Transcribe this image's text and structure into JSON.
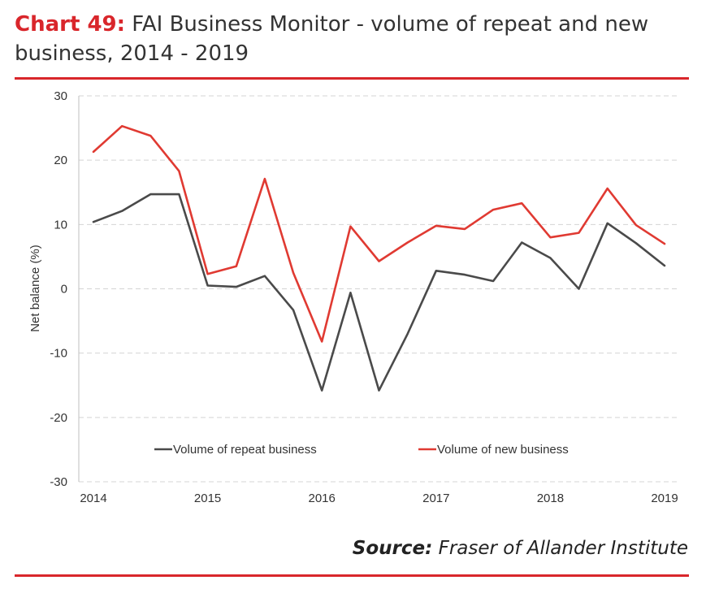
{
  "title": {
    "prefix": "Chart 49:",
    "text": "FAI Business Monitor - volume of repeat and new business, 2014 - 2019"
  },
  "source": {
    "label": "Source:",
    "text": "Fraser of Allander Institute"
  },
  "colors": {
    "accent": "#d9262b",
    "repeat": "#4a4a4a",
    "new": "#e03a32"
  },
  "chart_data": {
    "type": "line",
    "ylabel": "Net balance (%)",
    "xlabel": "",
    "ylim": [
      -30,
      30
    ],
    "yticks": [
      30,
      20,
      10,
      0,
      -10,
      -20,
      -30
    ],
    "xticks": [
      "2014",
      "2015",
      "2016",
      "2017",
      "2018",
      "2019"
    ],
    "grid": true,
    "legend_position": "bottom-inside",
    "x": [
      2014.0,
      2014.25,
      2014.5,
      2014.75,
      2015.0,
      2015.25,
      2015.5,
      2015.75,
      2016.0,
      2016.25,
      2016.5,
      2016.75,
      2017.0,
      2017.25,
      2017.5,
      2017.75,
      2018.0,
      2018.25,
      2018.5,
      2018.75,
      2019.0
    ],
    "series": [
      {
        "name": "Volume of repeat business",
        "values": [
          10.4,
          12.1,
          14.7,
          14.7,
          0.5,
          0.3,
          2.0,
          -3.3,
          -15.8,
          -0.6,
          -15.8,
          -7.0,
          2.8,
          2.2,
          1.2,
          7.2,
          4.8,
          0.0,
          10.2,
          7.1,
          3.6
        ]
      },
      {
        "name": "Volume of new business",
        "values": [
          21.3,
          25.3,
          23.8,
          18.3,
          2.3,
          3.5,
          17.1,
          2.5,
          -8.2,
          9.7,
          4.3,
          7.2,
          9.8,
          9.3,
          12.3,
          13.3,
          8.0,
          8.7,
          15.6,
          9.9,
          7.0
        ]
      }
    ]
  }
}
